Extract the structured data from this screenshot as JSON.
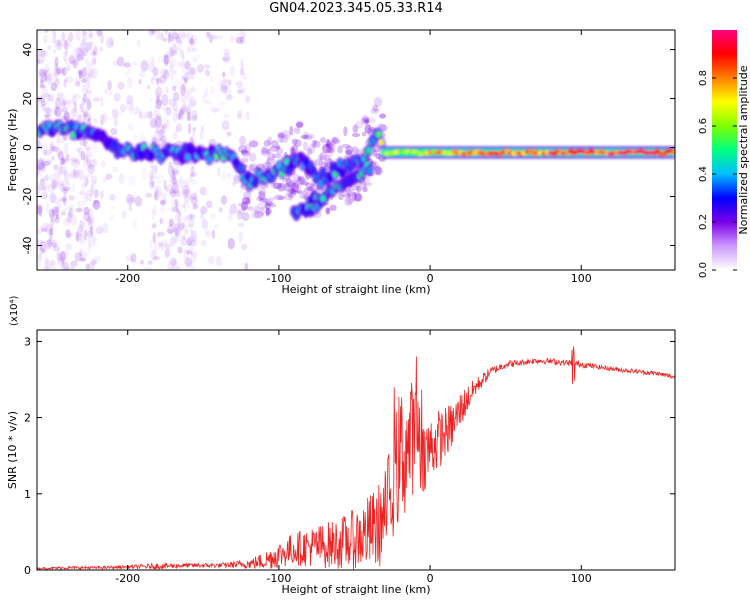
{
  "title": "GN04.2023.345.05.33.R14",
  "chart_data": [
    {
      "type": "heatmap",
      "xlabel": "Height of straight line (km)",
      "ylabel": "Frequency (Hz)",
      "xlim": [
        -260,
        162
      ],
      "ylim": [
        -50,
        48
      ],
      "xticks": [
        -200,
        -100,
        0,
        100
      ],
      "yticks": [
        -40,
        -20,
        0,
        20,
        40
      ],
      "colorbar": {
        "label": "Normalized spectral amplitude",
        "range": [
          0,
          1
        ],
        "ticks": [
          "0.0",
          "0.2",
          "0.4",
          "0.6",
          "0.8"
        ],
        "colors": [
          "#ffffff",
          "#cc99ff",
          "#7a00e6",
          "#0000ff",
          "#00bfff",
          "#00ff80",
          "#80ff00",
          "#ffff00",
          "#ff8000",
          "#ff0000",
          "#ff0080"
        ]
      },
      "ridge": {
        "x": [
          -258,
          -240,
          -225,
          -215,
          -205,
          -190,
          -175,
          -160,
          -150,
          -140,
          -130,
          -123,
          -110,
          -100,
          -95,
          -90,
          -85,
          -75,
          -60,
          -45,
          -35,
          -30,
          -20,
          0,
          20,
          50,
          80,
          110,
          162
        ],
        "y": [
          8,
          7,
          6,
          2,
          -2,
          -1,
          -3,
          -2,
          -3,
          -2,
          -4,
          -14,
          -12,
          -10,
          -8,
          -6,
          -5,
          -13,
          -9,
          -5,
          5,
          1,
          -1,
          -2,
          -2,
          -3,
          -3,
          -2,
          -2
        ],
        "amplitude": [
          0.35,
          0.45,
          0.4,
          0.3,
          0.35,
          0.4,
          0.35,
          0.3,
          0.35,
          0.45,
          0.4,
          0.35,
          0.4,
          0.45,
          0.4,
          0.35,
          0.3,
          0.35,
          0.4,
          0.45,
          0.5,
          0.6,
          0.65,
          0.7,
          0.75,
          0.8,
          0.85,
          0.9,
          0.95
        ]
      },
      "branches": [
        {
          "x": [
            -80,
            -70,
            -60,
            -50,
            -40
          ],
          "y": [
            -22,
            -20,
            -16,
            -12,
            -8
          ]
        },
        {
          "x": [
            -90,
            -80,
            -70
          ],
          "y": [
            -27,
            -25,
            -21
          ]
        }
      ]
    },
    {
      "type": "line",
      "xlabel": "Height of straight line (km)",
      "ylabel": "SNR (10 * v/v)",
      "multiplier": "(x10⁴)",
      "xlim": [
        -260,
        162
      ],
      "ylim": [
        0,
        3.15
      ],
      "xticks": [
        -200,
        -100,
        0,
        100
      ],
      "yticks": [
        0,
        1,
        2,
        3
      ],
      "color": "#ee2222",
      "series": [
        {
          "x": [
            -260,
            -240,
            -220,
            -200,
            -180,
            -160,
            -140,
            -120,
            -110,
            -100,
            -90,
            -80,
            -70,
            -60,
            -50,
            -40,
            -35,
            -30,
            -25,
            -20,
            -15,
            -10,
            -5,
            0,
            5,
            10,
            15,
            20,
            30,
            40,
            50,
            60,
            70,
            80,
            90,
            100,
            110,
            120,
            130,
            140,
            150,
            162
          ],
          "y": [
            0.02,
            0.03,
            0.03,
            0.04,
            0.05,
            0.06,
            0.06,
            0.08,
            0.12,
            0.2,
            0.28,
            0.3,
            0.32,
            0.35,
            0.4,
            0.5,
            0.55,
            0.7,
            1.1,
            1.5,
            1.6,
            1.8,
            1.5,
            1.6,
            1.7,
            1.8,
            1.9,
            2.1,
            2.4,
            2.6,
            2.7,
            2.72,
            2.75,
            2.74,
            2.72,
            2.7,
            2.67,
            2.64,
            2.62,
            2.6,
            2.58,
            2.53
          ],
          "noise": [
            0.01,
            0.02,
            0.02,
            0.02,
            0.04,
            0.03,
            0.03,
            0.06,
            0.12,
            0.18,
            0.22,
            0.26,
            0.3,
            0.34,
            0.4,
            0.5,
            0.55,
            0.6,
            0.7,
            0.9,
            0.9,
            0.7,
            0.5,
            0.45,
            0.4,
            0.35,
            0.3,
            0.25,
            0.12,
            0.06,
            0.05,
            0.04,
            0.04,
            0.04,
            0.04,
            0.04,
            0.03,
            0.03,
            0.03,
            0.03,
            0.03,
            0.03
          ]
        }
      ]
    }
  ]
}
